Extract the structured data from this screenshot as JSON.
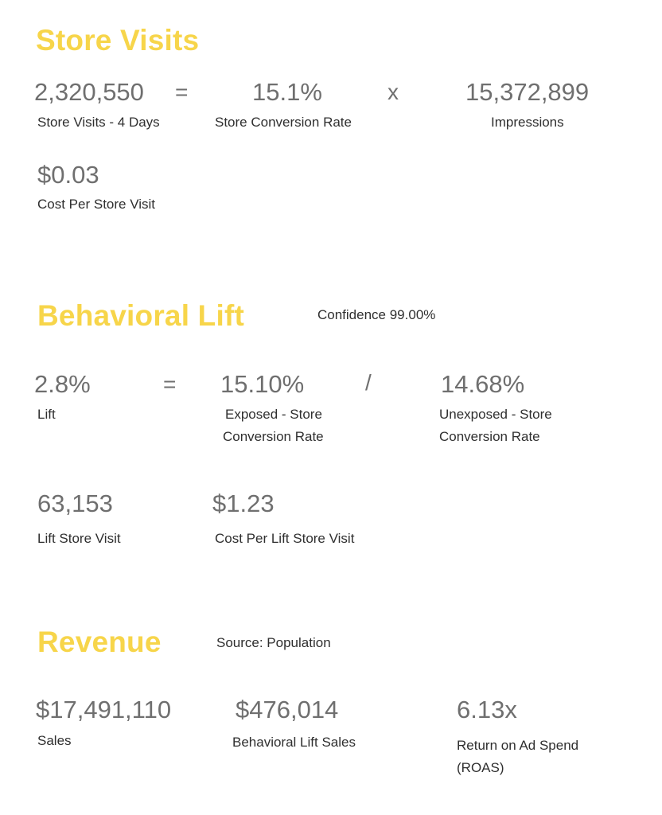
{
  "store_visits": {
    "title": "Store Visits",
    "visits_value": "2,320,550",
    "equals": "=",
    "visits_label": "Store Visits - 4 Days",
    "conversion_value": "15.1%",
    "conversion_label": "Store Conversion Rate",
    "times": "x",
    "impressions_value": "15,372,899",
    "impressions_label": "Impressions",
    "cost_value": "$0.03",
    "cost_label": "Cost Per Store Visit"
  },
  "behavioral_lift": {
    "title": "Behavioral Lift",
    "confidence": "Confidence 99.00%",
    "lift_value": "2.8%",
    "lift_label": "Lift",
    "equals": "=",
    "exposed_value": "15.10%",
    "exposed_label_line1": "Exposed - Store",
    "exposed_label_line2": "Conversion Rate",
    "divide": "/",
    "unexposed_value": "14.68%",
    "unexposed_label_line1": "Unexposed - Store",
    "unexposed_label_line2": "Conversion Rate",
    "lift_visit_value": "63,153",
    "lift_visit_label": "Lift Store Visit",
    "cost_lift_value": "$1.23",
    "cost_lift_label": "Cost Per Lift Store Visit"
  },
  "revenue": {
    "title": "Revenue",
    "source": "Source: Population",
    "sales_value": "$17,491,110",
    "sales_label": "Sales",
    "lift_sales_value": "$476,014",
    "lift_sales_label": "Behavioral Lift Sales",
    "roas_value": "6.13x",
    "roas_label_line1": "Return on Ad Spend",
    "roas_label_line2": "(ROAS)"
  }
}
